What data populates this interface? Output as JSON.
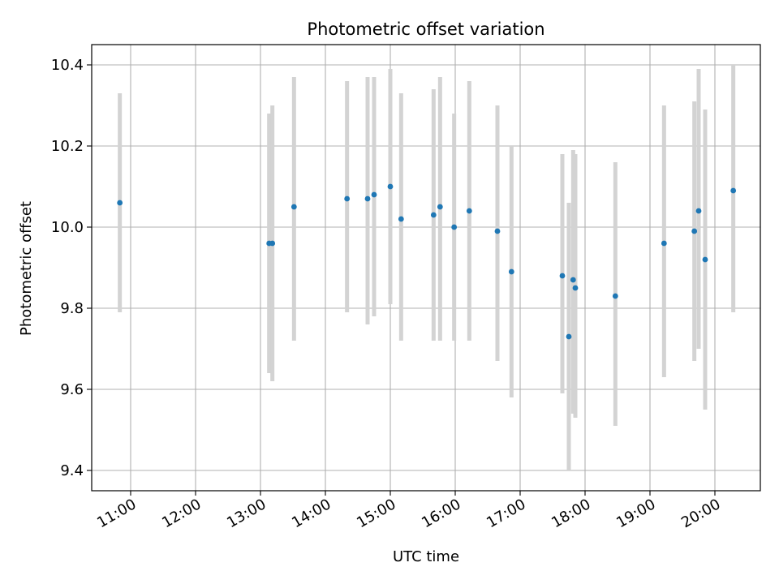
{
  "chart_data": {
    "type": "scatter",
    "title": "Photometric offset variation",
    "xlabel": "UTC time",
    "ylabel": "Photometric offset",
    "grid": true,
    "x_ticks": [
      "11:00",
      "12:00",
      "13:00",
      "14:00",
      "15:00",
      "16:00",
      "17:00",
      "18:00",
      "19:00",
      "20:00"
    ],
    "y_ticks": [
      "9.4",
      "9.6",
      "9.8",
      "10.0",
      "10.2",
      "10.4"
    ],
    "xlim": [
      "10:24",
      "20:42"
    ],
    "ylim": [
      9.35,
      10.45
    ],
    "colors": {
      "point": "#1f77b4",
      "error_bar": "#d3d3d3",
      "grid": "#b0b0b0"
    },
    "points": [
      {
        "x": "10:50",
        "y": 10.06,
        "ylow": 9.79,
        "yhigh": 10.33
      },
      {
        "x": "13:08",
        "y": 9.96,
        "ylow": 9.64,
        "yhigh": 10.28
      },
      {
        "x": "13:11",
        "y": 9.96,
        "ylow": 9.62,
        "yhigh": 10.3
      },
      {
        "x": "13:31",
        "y": 10.05,
        "ylow": 9.72,
        "yhigh": 10.37
      },
      {
        "x": "14:20",
        "y": 10.07,
        "ylow": 9.79,
        "yhigh": 10.36
      },
      {
        "x": "14:39",
        "y": 10.07,
        "ylow": 9.76,
        "yhigh": 10.37
      },
      {
        "x": "14:45",
        "y": 10.08,
        "ylow": 9.78,
        "yhigh": 10.37
      },
      {
        "x": "15:00",
        "y": 10.1,
        "ylow": 9.81,
        "yhigh": 10.39
      },
      {
        "x": "15:10",
        "y": 10.02,
        "ylow": 9.72,
        "yhigh": 10.33
      },
      {
        "x": "15:40",
        "y": 10.03,
        "ylow": 9.72,
        "yhigh": 10.34
      },
      {
        "x": "15:46",
        "y": 10.05,
        "ylow": 9.72,
        "yhigh": 10.37
      },
      {
        "x": "15:59",
        "y": 10.0,
        "ylow": 9.72,
        "yhigh": 10.28
      },
      {
        "x": "16:13",
        "y": 10.04,
        "ylow": 9.72,
        "yhigh": 10.36
      },
      {
        "x": "16:39",
        "y": 9.99,
        "ylow": 9.67,
        "yhigh": 10.3
      },
      {
        "x": "16:52",
        "y": 9.89,
        "ylow": 9.58,
        "yhigh": 10.2
      },
      {
        "x": "17:39",
        "y": 9.88,
        "ylow": 9.59,
        "yhigh": 10.18
      },
      {
        "x": "17:45",
        "y": 9.73,
        "ylow": 9.4,
        "yhigh": 10.06
      },
      {
        "x": "17:49",
        "y": 9.87,
        "ylow": 9.54,
        "yhigh": 10.19
      },
      {
        "x": "17:51",
        "y": 9.85,
        "ylow": 9.53,
        "yhigh": 10.18
      },
      {
        "x": "18:28",
        "y": 9.83,
        "ylow": 9.51,
        "yhigh": 10.16
      },
      {
        "x": "19:13",
        "y": 9.96,
        "ylow": 9.63,
        "yhigh": 10.3
      },
      {
        "x": "19:41",
        "y": 9.99,
        "ylow": 9.67,
        "yhigh": 10.31
      },
      {
        "x": "19:45",
        "y": 10.04,
        "ylow": 9.7,
        "yhigh": 10.39
      },
      {
        "x": "19:51",
        "y": 9.92,
        "ylow": 9.55,
        "yhigh": 10.29
      },
      {
        "x": "20:17",
        "y": 10.09,
        "ylow": 9.79,
        "yhigh": 10.4
      }
    ]
  }
}
